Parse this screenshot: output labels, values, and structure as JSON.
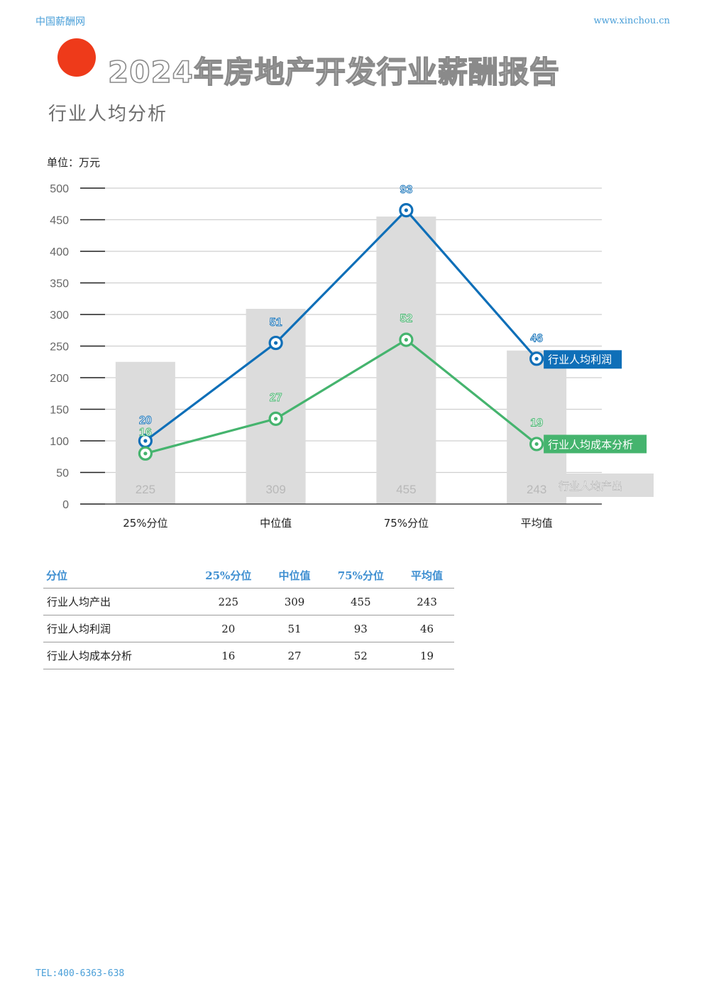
{
  "header": {
    "brand": "中国薪酬网",
    "website": "www.xinchou.cn",
    "title": "2024年房地产开发行业薪酬报告",
    "subtitle": "行业人均分析",
    "accent_color": "#ee3a1a"
  },
  "chart_data": {
    "type": "bar+line",
    "unit_label": "单位：万元",
    "categories": [
      "25%分位",
      "中位值",
      "75%分位",
      "平均值"
    ],
    "ylim": [
      0,
      500
    ],
    "yticks": [
      0,
      50,
      100,
      150,
      200,
      250,
      300,
      350,
      400,
      450,
      500
    ],
    "grid": true,
    "bar_series": {
      "name": "行业人均产出",
      "values": [
        225,
        309,
        455,
        243
      ],
      "color": "#dcdcdc",
      "label_color": "#b8b8b8"
    },
    "line_series": [
      {
        "name": "行业人均利润",
        "labels": [
          20,
          51,
          93,
          46
        ],
        "plotted_y": [
          100,
          255,
          465,
          230
        ],
        "color": "#0f6fb8"
      },
      {
        "name": "行业人均成本分析",
        "labels": [
          16,
          27,
          52,
          19
        ],
        "plotted_y": [
          80,
          135,
          260,
          95
        ],
        "color": "#45b46e"
      }
    ],
    "legend_placement": "right"
  },
  "table": {
    "headers": [
      "分位",
      "25%分位",
      "中位值",
      "75%分位",
      "平均值"
    ],
    "rows": [
      {
        "label": "行业人均产出",
        "values": [
          "225",
          "309",
          "455",
          "243"
        ]
      },
      {
        "label": "行业人均利润",
        "values": [
          "20",
          "51",
          "93",
          "46"
        ]
      },
      {
        "label": "行业人均成本分析",
        "values": [
          "16",
          "27",
          "52",
          "19"
        ]
      }
    ]
  },
  "footer": {
    "tel": "TEL:400-6363-638"
  }
}
